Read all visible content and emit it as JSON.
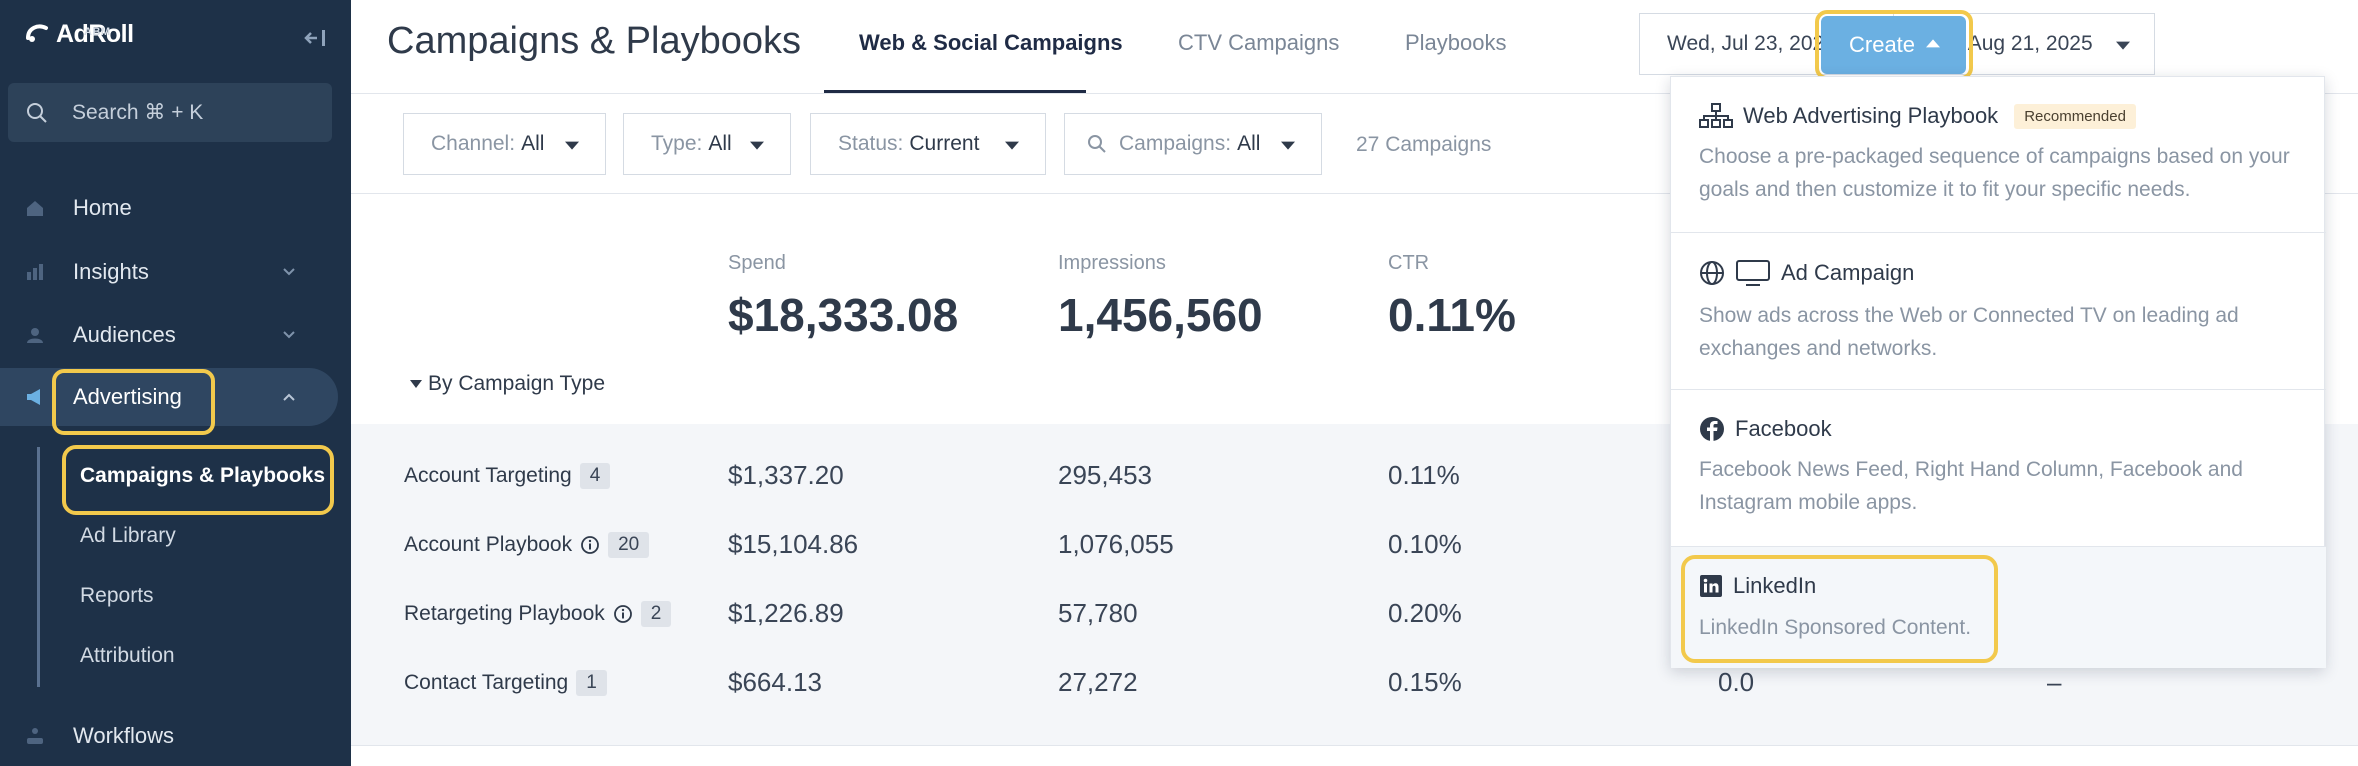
{
  "app": {
    "logo_text": "AdRoll",
    "logo_sub": "ABM"
  },
  "sidebar": {
    "search_placeholder": "Search ⌘ + K",
    "items": [
      {
        "label": "Home",
        "icon": "home-icon"
      },
      {
        "label": "Insights",
        "icon": "chart-icon"
      },
      {
        "label": "Audiences",
        "icon": "users-icon"
      },
      {
        "label": "Advertising",
        "icon": "megaphone-icon"
      },
      {
        "label": "Workflows",
        "icon": "workflow-icon"
      }
    ],
    "sub_items": [
      {
        "label": "Campaigns & Playbooks"
      },
      {
        "label": "Ad Library"
      },
      {
        "label": "Reports"
      },
      {
        "label": "Attribution"
      }
    ]
  },
  "header": {
    "title": "Campaigns & Playbooks",
    "tabs": [
      {
        "label": "Web & Social Campaigns"
      },
      {
        "label": "CTV Campaigns"
      },
      {
        "label": "Playbooks"
      }
    ],
    "start_date": "Wed, Jul 23, 2025",
    "end_date": "Thu, Aug 21, 2025",
    "create_label": "Create"
  },
  "filters": {
    "channel": {
      "label": "Channel:",
      "value": "All"
    },
    "type": {
      "label": "Type:",
      "value": "All"
    },
    "status": {
      "label": "Status:",
      "value": "Current"
    },
    "campaigns": {
      "label": "Campaigns:",
      "value": "All"
    },
    "count_text": "27 Campaigns"
  },
  "stats": [
    {
      "label": "Spend",
      "value": "$18,333.08"
    },
    {
      "label": "Impressions",
      "value": "1,456,560"
    },
    {
      "label": "CTR",
      "value": "0.11%"
    }
  ],
  "group_label": "By Campaign Type",
  "table": {
    "rows": [
      {
        "name": "Account Targeting",
        "count": "4",
        "info": false,
        "spend": "$1,337.20",
        "impressions": "295,453",
        "ctr": "0.11%"
      },
      {
        "name": "Account Playbook",
        "count": "20",
        "info": true,
        "spend": "$15,104.86",
        "impressions": "1,076,055",
        "ctr": "0.10%"
      },
      {
        "name": "Retargeting Playbook",
        "count": "2",
        "info": true,
        "spend": "$1,226.89",
        "impressions": "57,780",
        "ctr": "0.20%"
      },
      {
        "name": "Contact Targeting",
        "count": "1",
        "info": false,
        "spend": "$664.13",
        "impressions": "27,272",
        "ctr": "0.15%"
      }
    ],
    "partial_values": [
      "0.0",
      "–"
    ]
  },
  "create_menu": [
    {
      "title": "Web Advertising Playbook",
      "badge": "Recommended",
      "desc": "Choose a pre-packaged sequence of campaigns based on your goals and then customize it to fit your specific needs.",
      "icon": "sitemap-icon"
    },
    {
      "title": "Ad Campaign",
      "desc": "Show ads across the Web or Connected TV on leading ad exchanges and networks.",
      "icon": "globe-icon"
    },
    {
      "title": "Facebook",
      "desc": "Facebook News Feed, Right Hand Column, Facebook and Instagram mobile apps.",
      "icon": "facebook-icon"
    },
    {
      "title": "LinkedIn",
      "desc": "LinkedIn Sponsored Content.",
      "icon": "linkedin-icon"
    }
  ],
  "colors": {
    "sidebar_bg": "#1e3148",
    "accent": "#6bb0e2",
    "highlight": "#f2c94c",
    "primary_text": "#2f3a4a"
  }
}
